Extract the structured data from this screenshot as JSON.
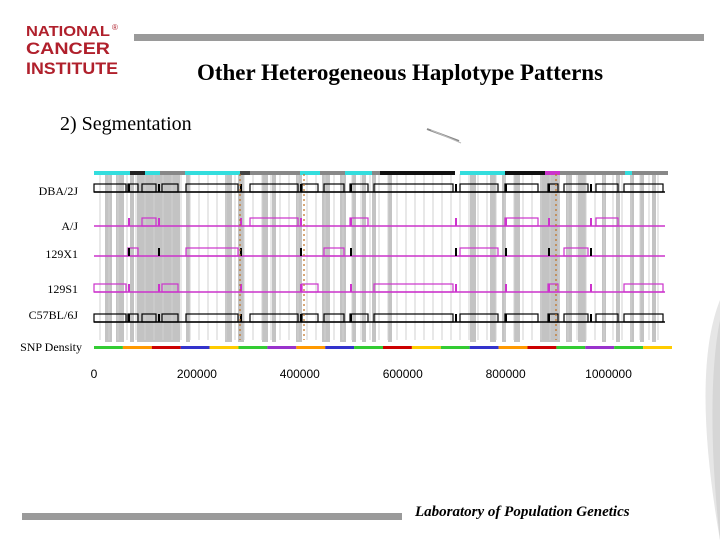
{
  "logo": {
    "lines": [
      "NATIONAL",
      "CANCER",
      "INSTITUTE"
    ],
    "mark": "®"
  },
  "title": "Other Heterogeneous Haplotype Patterns",
  "subtitle": "2) Segmentation",
  "tracks": {
    "labels": [
      "DBA/2J",
      "A/J",
      "129X1",
      "129S1",
      "C57BL/6J",
      "SNP Density"
    ]
  },
  "axis": {
    "ticks": [
      "0",
      "200000",
      "400000",
      "600000",
      "800000",
      "1000000"
    ],
    "values": [
      0,
      200000,
      400000,
      600000,
      800000,
      1000000
    ],
    "max": 1100000
  },
  "footer": "Laboratory of Population Genetics",
  "colors": {
    "accent_gray": "#9a9a9a",
    "logo_red": "#b0202c",
    "magenta": "#cc33cc",
    "cyan": "#33dddd",
    "gray_band": "#b8b8b8",
    "dot_line": "#c07020"
  }
}
